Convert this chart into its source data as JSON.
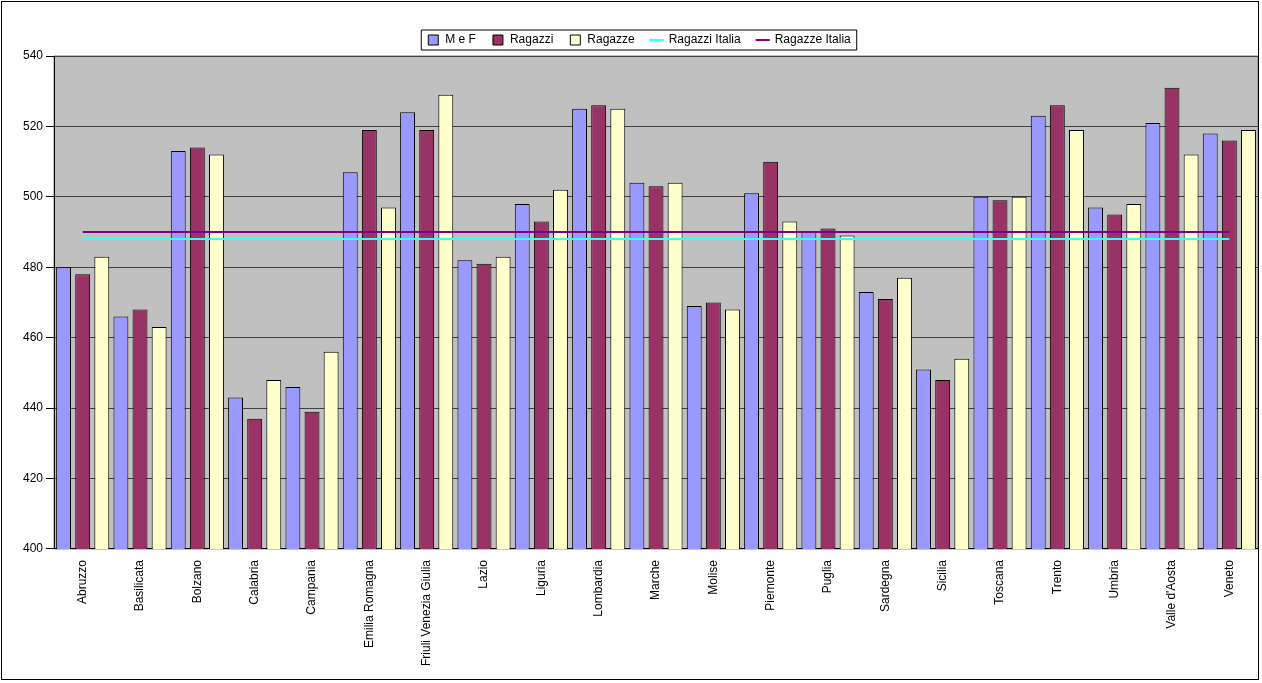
{
  "chart_data": {
    "type": "bar",
    "categories": [
      "Abruzzo",
      "Basilicata",
      "Bolzano",
      "Calabria",
      "Campania",
      "Emilia Romagna",
      "Friuli Venezia Giulia",
      "Lazio",
      "Liguria",
      "Lombardia",
      "Marche",
      "Molise",
      "Piemonte",
      "Puglia",
      "Sardegna",
      "Sicilia",
      "Toscana",
      "Trento",
      "Umbria",
      "Valle d'Aosta",
      "Veneto"
    ],
    "series": [
      {
        "name": "M e F",
        "color": "#9999ff",
        "values": [
          480,
          466,
          513,
          443,
          446,
          507,
          524,
          482,
          498,
          525,
          504,
          469,
          501,
          490,
          473,
          451,
          500,
          523,
          497,
          521,
          518
        ]
      },
      {
        "name": "Ragazzi",
        "color": "#993366",
        "values": [
          478,
          468,
          514,
          437,
          439,
          519,
          519,
          481,
          493,
          526,
          503,
          470,
          510,
          491,
          471,
          448,
          499,
          526,
          495,
          531,
          516
        ]
      },
      {
        "name": "Ragazze",
        "color": "#ffffcc",
        "values": [
          483,
          463,
          512,
          448,
          456,
          497,
          529,
          483,
          502,
          525,
          504,
          468,
          493,
          489,
          477,
          454,
          500,
          519,
          498,
          512,
          519
        ]
      },
      {
        "name": "Ragazzi Italia",
        "type": "line",
        "color": "#33ffff",
        "values": [
          488,
          488,
          488,
          488,
          488,
          488,
          488,
          488,
          488,
          488,
          488,
          488,
          488,
          488,
          488,
          488,
          488,
          488,
          488,
          488,
          488
        ]
      },
      {
        "name": "Ragazze Italia",
        "type": "line",
        "color": "#800080",
        "values": [
          490,
          490,
          490,
          490,
          490,
          490,
          490,
          490,
          490,
          490,
          490,
          490,
          490,
          490,
          490,
          490,
          490,
          490,
          490,
          490,
          490
        ]
      }
    ],
    "ylim": [
      400,
      540
    ],
    "yticks": [
      400,
      420,
      440,
      460,
      480,
      500,
      520,
      540
    ],
    "grid": "y",
    "legend": "top",
    "marker": "none"
  }
}
